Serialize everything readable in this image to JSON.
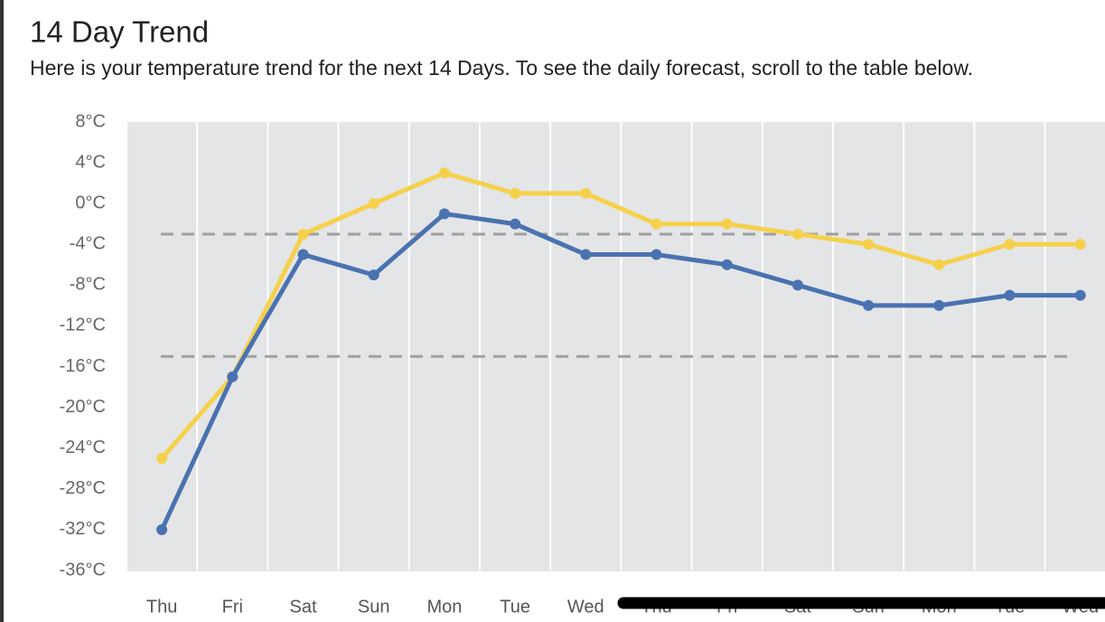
{
  "chart_data": {
    "type": "line",
    "title": "14 Day Trend",
    "subtitle": "Here is your temperature trend for the next 14 Days. To see the daily forecast, scroll to the table below.",
    "categories": [
      "Thu",
      "Fri",
      "Sat",
      "Sun",
      "Mon",
      "Tue",
      "Wed",
      "Thu",
      "Fri",
      "Sat",
      "Sun",
      "Mon",
      "Tue",
      "Wed"
    ],
    "series": [
      {
        "color": "#f5d14b",
        "values": [
          -25,
          -17,
          -3,
          0,
          3,
          1,
          1,
          -2,
          -2,
          -3,
          -4,
          -6,
          -4,
          -4
        ]
      },
      {
        "color": "#4a72b0",
        "values": [
          -32,
          -17,
          -5,
          -7,
          -1,
          -2,
          -5,
          -5,
          -6,
          -8,
          -10,
          -10,
          -9,
          -9
        ]
      }
    ],
    "reference_lines": [
      -3,
      -15
    ],
    "ylim": [
      -36,
      8
    ],
    "yticks": [
      {
        "value": 8,
        "label": "8°C"
      },
      {
        "value": 4,
        "label": "4°C"
      },
      {
        "value": 0,
        "label": "0°C"
      },
      {
        "value": -4,
        "label": "-4°C"
      },
      {
        "value": -8,
        "label": "-8°C"
      },
      {
        "value": -12,
        "label": "-12°C"
      },
      {
        "value": -16,
        "label": "-16°C"
      },
      {
        "value": -20,
        "label": "-20°C"
      },
      {
        "value": -24,
        "label": "-24°C"
      },
      {
        "value": -28,
        "label": "-28°C"
      },
      {
        "value": -32,
        "label": "-32°C"
      },
      {
        "value": -36,
        "label": "-36°C"
      }
    ],
    "grid": true
  }
}
